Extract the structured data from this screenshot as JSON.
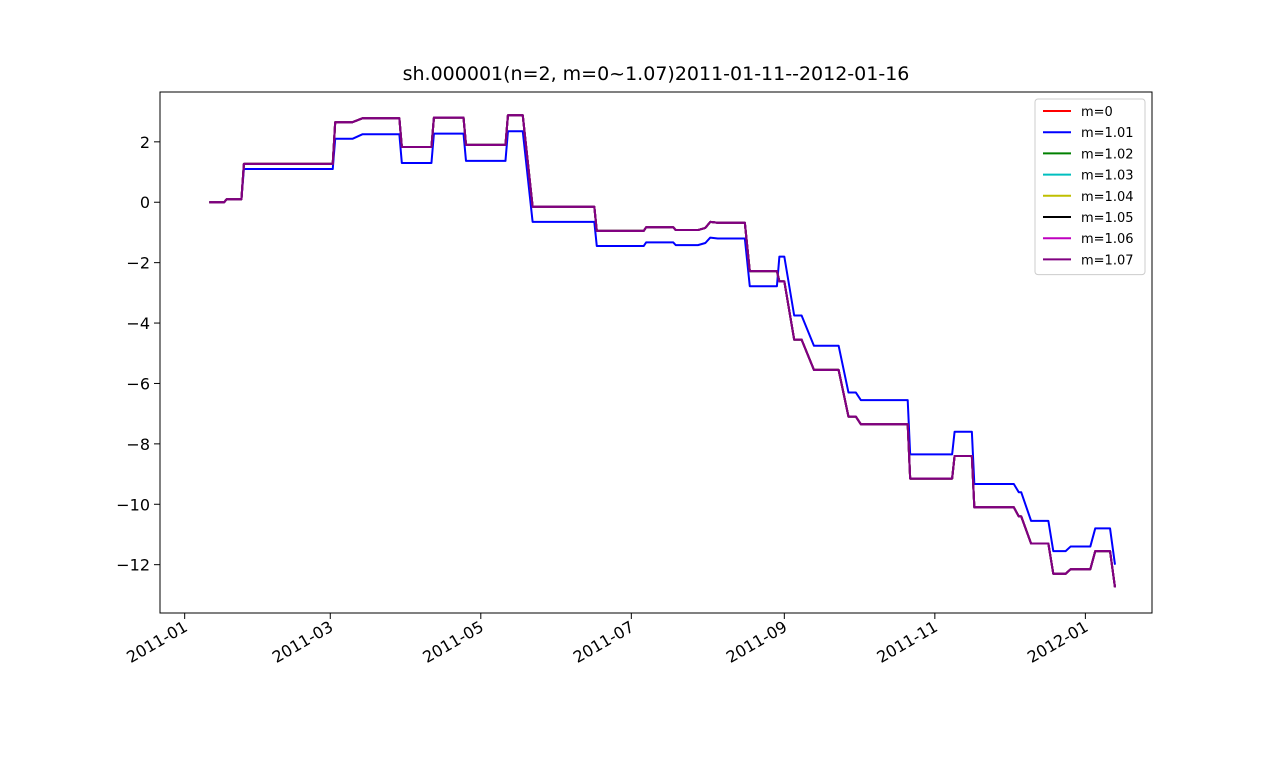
{
  "chart_data": {
    "type": "line",
    "title": "sh.000001(n=2, m=0~1.07)2011-01-11--2012-01-16",
    "xlabel": "",
    "ylabel": "",
    "x_scale": "date",
    "xlim": [
      "2010-12-22",
      "2012-01-28"
    ],
    "ylim": [
      -13.6,
      3.65
    ],
    "x_ticks": [
      "2011-01",
      "2011-03",
      "2011-05",
      "2011-07",
      "2011-09",
      "2011-11",
      "2012-01"
    ],
    "x_tick_dates": [
      "2011-01-01",
      "2011-03-01",
      "2011-05-01",
      "2011-07-01",
      "2011-09-01",
      "2011-11-01",
      "2012-01-01"
    ],
    "y_ticks": [
      2,
      0,
      -2,
      -4,
      -6,
      -8,
      -10,
      -12
    ],
    "y_tick_labels": [
      "2",
      "0",
      "−2",
      "−4",
      "−6",
      "−8",
      "−10",
      "−12"
    ],
    "grid": false,
    "legend": "top-right",
    "series": [
      {
        "name": "m=0",
        "color": "#ff0000",
        "points": [
          [
            "2011-01-11",
            0.0
          ],
          [
            "2011-01-17",
            0.0
          ],
          [
            "2011-01-18",
            0.1
          ],
          [
            "2011-01-24",
            0.1
          ],
          [
            "2011-01-25",
            1.27
          ],
          [
            "2011-03-02",
            1.27
          ],
          [
            "2011-03-03",
            2.65
          ],
          [
            "2011-03-10",
            2.65
          ],
          [
            "2011-03-14",
            2.78
          ],
          [
            "2011-03-29",
            2.78
          ],
          [
            "2011-03-30",
            1.83
          ],
          [
            "2011-04-11",
            1.83
          ],
          [
            "2011-04-12",
            2.8
          ],
          [
            "2011-04-24",
            2.8
          ],
          [
            "2011-04-25",
            1.9
          ],
          [
            "2011-05-11",
            1.9
          ],
          [
            "2011-05-12",
            2.88
          ],
          [
            "2011-05-18",
            2.88
          ],
          [
            "2011-05-22",
            -0.15
          ],
          [
            "2011-06-16",
            -0.15
          ],
          [
            "2011-06-17",
            -0.95
          ],
          [
            "2011-07-06",
            -0.95
          ],
          [
            "2011-07-07",
            -0.83
          ],
          [
            "2011-07-18",
            -0.83
          ],
          [
            "2011-07-19",
            -0.92
          ],
          [
            "2011-07-28",
            -0.92
          ],
          [
            "2011-07-31",
            -0.85
          ],
          [
            "2011-08-02",
            -0.65
          ],
          [
            "2011-08-05",
            -0.68
          ],
          [
            "2011-08-16",
            -0.68
          ],
          [
            "2011-08-18",
            -2.28
          ],
          [
            "2011-08-29",
            -2.28
          ],
          [
            "2011-08-30",
            -2.62
          ],
          [
            "2011-09-01",
            -2.62
          ],
          [
            "2011-09-05",
            -4.55
          ],
          [
            "2011-09-08",
            -4.55
          ],
          [
            "2011-09-13",
            -5.55
          ],
          [
            "2011-09-23",
            -5.55
          ],
          [
            "2011-09-27",
            -7.1
          ],
          [
            "2011-09-30",
            -7.1
          ],
          [
            "2011-10-02",
            -7.35
          ],
          [
            "2011-10-21",
            -7.35
          ],
          [
            "2011-10-22",
            -9.15
          ],
          [
            "2011-11-08",
            -9.15
          ],
          [
            "2011-11-09",
            -8.4
          ],
          [
            "2011-11-16",
            -8.4
          ],
          [
            "2011-11-17",
            -10.1
          ],
          [
            "2011-12-03",
            -10.1
          ],
          [
            "2011-12-05",
            -10.4
          ],
          [
            "2011-12-06",
            -10.4
          ],
          [
            "2011-12-10",
            -11.3
          ],
          [
            "2011-12-17",
            -11.3
          ],
          [
            "2011-12-19",
            -12.3
          ],
          [
            "2011-12-24",
            -12.3
          ],
          [
            "2011-12-26",
            -12.15
          ],
          [
            "2012-01-03",
            -12.15
          ],
          [
            "2012-01-05",
            -11.55
          ],
          [
            "2012-01-11",
            -11.55
          ],
          [
            "2012-01-13",
            -12.75
          ]
        ]
      },
      {
        "name": "m=1.01",
        "color": "#0000ff",
        "points": [
          [
            "2011-01-11",
            0.0
          ],
          [
            "2011-01-17",
            0.0
          ],
          [
            "2011-01-18",
            0.1
          ],
          [
            "2011-01-24",
            0.1
          ],
          [
            "2011-01-25",
            1.1
          ],
          [
            "2011-03-02",
            1.1
          ],
          [
            "2011-03-03",
            2.1
          ],
          [
            "2011-03-10",
            2.1
          ],
          [
            "2011-03-14",
            2.25
          ],
          [
            "2011-03-29",
            2.25
          ],
          [
            "2011-03-30",
            1.3
          ],
          [
            "2011-04-11",
            1.3
          ],
          [
            "2011-04-12",
            2.27
          ],
          [
            "2011-04-24",
            2.27
          ],
          [
            "2011-04-25",
            1.37
          ],
          [
            "2011-05-11",
            1.37
          ],
          [
            "2011-05-12",
            2.35
          ],
          [
            "2011-05-18",
            2.35
          ],
          [
            "2011-05-22",
            -0.65
          ],
          [
            "2011-06-16",
            -0.65
          ],
          [
            "2011-06-17",
            -1.45
          ],
          [
            "2011-07-06",
            -1.45
          ],
          [
            "2011-07-07",
            -1.33
          ],
          [
            "2011-07-18",
            -1.33
          ],
          [
            "2011-07-19",
            -1.42
          ],
          [
            "2011-07-28",
            -1.42
          ],
          [
            "2011-07-31",
            -1.35
          ],
          [
            "2011-08-02",
            -1.17
          ],
          [
            "2011-08-05",
            -1.2
          ],
          [
            "2011-08-16",
            -1.2
          ],
          [
            "2011-08-18",
            -2.78
          ],
          [
            "2011-08-29",
            -2.78
          ],
          [
            "2011-08-30",
            -1.8
          ],
          [
            "2011-09-01",
            -1.8
          ],
          [
            "2011-09-05",
            -3.75
          ],
          [
            "2011-09-08",
            -3.75
          ],
          [
            "2011-09-13",
            -4.75
          ],
          [
            "2011-09-23",
            -4.75
          ],
          [
            "2011-09-27",
            -6.3
          ],
          [
            "2011-09-30",
            -6.3
          ],
          [
            "2011-10-02",
            -6.55
          ],
          [
            "2011-10-21",
            -6.55
          ],
          [
            "2011-10-22",
            -8.35
          ],
          [
            "2011-11-08",
            -8.35
          ],
          [
            "2011-11-09",
            -7.6
          ],
          [
            "2011-11-16",
            -7.6
          ],
          [
            "2011-11-17",
            -9.33
          ],
          [
            "2011-12-03",
            -9.33
          ],
          [
            "2011-12-05",
            -9.6
          ],
          [
            "2011-12-06",
            -9.6
          ],
          [
            "2011-12-10",
            -10.55
          ],
          [
            "2011-12-17",
            -10.55
          ],
          [
            "2011-12-19",
            -11.55
          ],
          [
            "2011-12-24",
            -11.55
          ],
          [
            "2011-12-26",
            -11.4
          ],
          [
            "2012-01-03",
            -11.4
          ],
          [
            "2012-01-05",
            -10.8
          ],
          [
            "2012-01-11",
            -10.8
          ],
          [
            "2012-01-13",
            -12.0
          ]
        ]
      },
      {
        "name": "m=1.02",
        "color": "#008000",
        "same_as": "m=0"
      },
      {
        "name": "m=1.03",
        "color": "#00bfbf",
        "same_as": "m=0"
      },
      {
        "name": "m=1.04",
        "color": "#bfbf00",
        "same_as": "m=0"
      },
      {
        "name": "m=1.05",
        "color": "#000000",
        "same_as": "m=0"
      },
      {
        "name": "m=1.06",
        "color": "#bf00bf",
        "same_as": "m=0"
      },
      {
        "name": "m=1.07",
        "color": "#800080",
        "same_as": "m=0"
      }
    ]
  }
}
